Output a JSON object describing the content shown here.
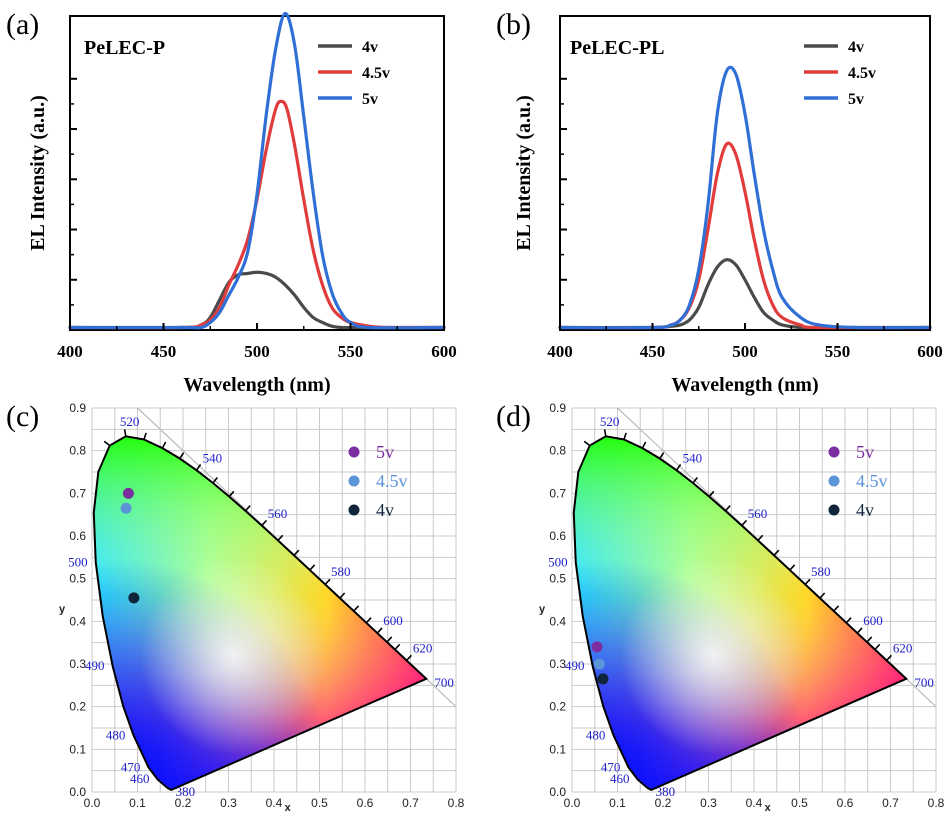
{
  "colors": {
    "v4": "#4a4a4a",
    "v45": "#e03c3c",
    "v5": "#2f6fd6",
    "cie_v5": "#7b2ea0",
    "cie_v45": "#5b95d8",
    "cie_v4": "#10243c",
    "wavelength_label": "#2222cc"
  },
  "chart_data": [
    {
      "type": "line",
      "panel": "(a)",
      "title": "PeLEC-P",
      "xlabel": "Wavelength (nm)",
      "ylabel": "EL Intensity (a.u.)",
      "xlim": [
        400,
        600
      ],
      "xticks": [
        "400",
        "450",
        "500",
        "550",
        "600"
      ],
      "ylim": [
        0,
        1.25
      ],
      "legend_position": "top-right",
      "series": [
        {
          "name": "4v",
          "color": "#4a4a4a",
          "x": [
            400,
            460,
            470,
            475,
            480,
            485,
            490,
            495,
            500,
            505,
            510,
            515,
            520,
            525,
            530,
            535,
            540,
            545,
            550,
            560,
            600
          ],
          "y": [
            0.01,
            0.01,
            0.02,
            0.05,
            0.12,
            0.19,
            0.22,
            0.225,
            0.23,
            0.225,
            0.21,
            0.18,
            0.14,
            0.09,
            0.05,
            0.03,
            0.015,
            0.01,
            0.01,
            0.01,
            0.01
          ]
        },
        {
          "name": "4.5v",
          "color": "#e03c3c",
          "x": [
            400,
            460,
            470,
            475,
            480,
            485,
            490,
            495,
            500,
            505,
            510,
            513,
            516,
            520,
            525,
            530,
            535,
            540,
            545,
            550,
            560,
            570,
            600
          ],
          "y": [
            0.01,
            0.01,
            0.02,
            0.04,
            0.09,
            0.18,
            0.26,
            0.36,
            0.52,
            0.72,
            0.88,
            0.91,
            0.88,
            0.74,
            0.52,
            0.32,
            0.18,
            0.09,
            0.05,
            0.03,
            0.015,
            0.01,
            0.01
          ]
        },
        {
          "name": "5v",
          "color": "#2f6fd6",
          "x": [
            400,
            460,
            470,
            475,
            480,
            485,
            490,
            495,
            500,
            505,
            510,
            515,
            520,
            525,
            530,
            535,
            540,
            545,
            550,
            560,
            600
          ],
          "y": [
            0.01,
            0.01,
            0.01,
            0.03,
            0.07,
            0.14,
            0.21,
            0.31,
            0.54,
            0.86,
            1.12,
            1.26,
            1.14,
            0.85,
            0.55,
            0.3,
            0.15,
            0.07,
            0.03,
            0.01,
            0.01
          ]
        }
      ]
    },
    {
      "type": "line",
      "panel": "(b)",
      "title": "PeLEC-PL",
      "xlabel": "Wavelength (nm)",
      "ylabel": "EL Intensity (a.u.)",
      "xlim": [
        400,
        600
      ],
      "xticks": [
        "400",
        "450",
        "500",
        "550",
        "600"
      ],
      "ylim": [
        0,
        1.25
      ],
      "legend_position": "top-right",
      "series": [
        {
          "name": "4v",
          "color": "#4a4a4a",
          "x": [
            400,
            450,
            460,
            465,
            470,
            475,
            480,
            485,
            490,
            495,
            500,
            505,
            510,
            515,
            520,
            530,
            540,
            600
          ],
          "y": [
            0.01,
            0.01,
            0.015,
            0.02,
            0.04,
            0.09,
            0.18,
            0.25,
            0.28,
            0.26,
            0.2,
            0.13,
            0.07,
            0.04,
            0.02,
            0.01,
            0.01,
            0.01
          ]
        },
        {
          "name": "4.5v",
          "color": "#e03c3c",
          "x": [
            400,
            450,
            460,
            465,
            470,
            475,
            480,
            485,
            490,
            495,
            500,
            505,
            510,
            515,
            520,
            530,
            540,
            600
          ],
          "y": [
            0.01,
            0.01,
            0.02,
            0.04,
            0.09,
            0.2,
            0.4,
            0.62,
            0.74,
            0.7,
            0.55,
            0.36,
            0.2,
            0.1,
            0.05,
            0.02,
            0.01,
            0.01
          ]
        },
        {
          "name": "5v",
          "color": "#2f6fd6",
          "x": [
            400,
            450,
            460,
            465,
            470,
            475,
            480,
            485,
            490,
            495,
            500,
            505,
            510,
            515,
            520,
            530,
            540,
            560,
            600
          ],
          "y": [
            0.01,
            0.01,
            0.02,
            0.04,
            0.1,
            0.24,
            0.5,
            0.86,
            1.03,
            1.02,
            0.86,
            0.62,
            0.4,
            0.24,
            0.13,
            0.05,
            0.02,
            0.01,
            0.01
          ]
        }
      ]
    },
    {
      "type": "scatter",
      "panel": "(c)",
      "xlabel": "x",
      "ylabel": "y",
      "xlim": [
        0,
        0.8
      ],
      "ylim": [
        0,
        0.9
      ],
      "xticks": [
        "0.0",
        "0.1",
        "0.2",
        "0.3",
        "0.4",
        "0.5",
        "0.6",
        "0.7",
        "0.8"
      ],
      "yticks": [
        "0.0",
        "0.1",
        "0.2",
        "0.3",
        "0.4",
        "0.5",
        "0.6",
        "0.7",
        "0.8",
        "0.9"
      ],
      "wavelength_labels": [
        {
          "text": "380",
          "x": 0.175,
          "y": 0.005
        },
        {
          "text": "460",
          "x": 0.144,
          "y": 0.03
        },
        {
          "text": "470",
          "x": 0.124,
          "y": 0.058
        },
        {
          "text": "480",
          "x": 0.091,
          "y": 0.133
        },
        {
          "text": "490",
          "x": 0.045,
          "y": 0.295
        },
        {
          "text": "500",
          "x": 0.008,
          "y": 0.538
        },
        {
          "text": "520",
          "x": 0.074,
          "y": 0.834
        },
        {
          "text": "540",
          "x": 0.23,
          "y": 0.754
        },
        {
          "text": "560",
          "x": 0.373,
          "y": 0.624
        },
        {
          "text": "580",
          "x": 0.512,
          "y": 0.487
        },
        {
          "text": "600",
          "x": 0.627,
          "y": 0.373
        },
        {
          "text": "620",
          "x": 0.692,
          "y": 0.308
        },
        {
          "text": "700",
          "x": 0.735,
          "y": 0.265
        }
      ],
      "legend_position": "top-right",
      "series": [
        {
          "name": "5v",
          "color": "#7b2ea0",
          "x": [
            0.08
          ],
          "y": [
            0.7
          ]
        },
        {
          "name": "4.5v",
          "color": "#5b95d8",
          "x": [
            0.075
          ],
          "y": [
            0.665
          ]
        },
        {
          "name": "4v",
          "color": "#10243c",
          "x": [
            0.092
          ],
          "y": [
            0.455
          ]
        }
      ]
    },
    {
      "type": "scatter",
      "panel": "(d)",
      "xlabel": "x",
      "ylabel": "y",
      "xlim": [
        0,
        0.8
      ],
      "ylim": [
        0,
        0.9
      ],
      "xticks": [
        "0.0",
        "0.1",
        "0.2",
        "0.3",
        "0.4",
        "0.5",
        "0.6",
        "0.7",
        "0.8"
      ],
      "yticks": [
        "0.0",
        "0.1",
        "0.2",
        "0.3",
        "0.4",
        "0.5",
        "0.6",
        "0.7",
        "0.8",
        "0.9"
      ],
      "wavelength_labels": [
        {
          "text": "380",
          "x": 0.175,
          "y": 0.005
        },
        {
          "text": "460",
          "x": 0.144,
          "y": 0.03
        },
        {
          "text": "470",
          "x": 0.124,
          "y": 0.058
        },
        {
          "text": "480",
          "x": 0.091,
          "y": 0.133
        },
        {
          "text": "490",
          "x": 0.045,
          "y": 0.295
        },
        {
          "text": "500",
          "x": 0.008,
          "y": 0.538
        },
        {
          "text": "520",
          "x": 0.074,
          "y": 0.834
        },
        {
          "text": "540",
          "x": 0.23,
          "y": 0.754
        },
        {
          "text": "560",
          "x": 0.373,
          "y": 0.624
        },
        {
          "text": "580",
          "x": 0.512,
          "y": 0.487
        },
        {
          "text": "600",
          "x": 0.627,
          "y": 0.373
        },
        {
          "text": "620",
          "x": 0.692,
          "y": 0.308
        },
        {
          "text": "700",
          "x": 0.735,
          "y": 0.265
        }
      ],
      "legend_position": "top-right",
      "series": [
        {
          "name": "5v",
          "color": "#7b2ea0",
          "x": [
            0.055
          ],
          "y": [
            0.34
          ]
        },
        {
          "name": "4.5v",
          "color": "#5b95d8",
          "x": [
            0.06
          ],
          "y": [
            0.3
          ]
        },
        {
          "name": "4v",
          "color": "#10243c",
          "x": [
            0.068
          ],
          "y": [
            0.265
          ]
        }
      ]
    }
  ]
}
